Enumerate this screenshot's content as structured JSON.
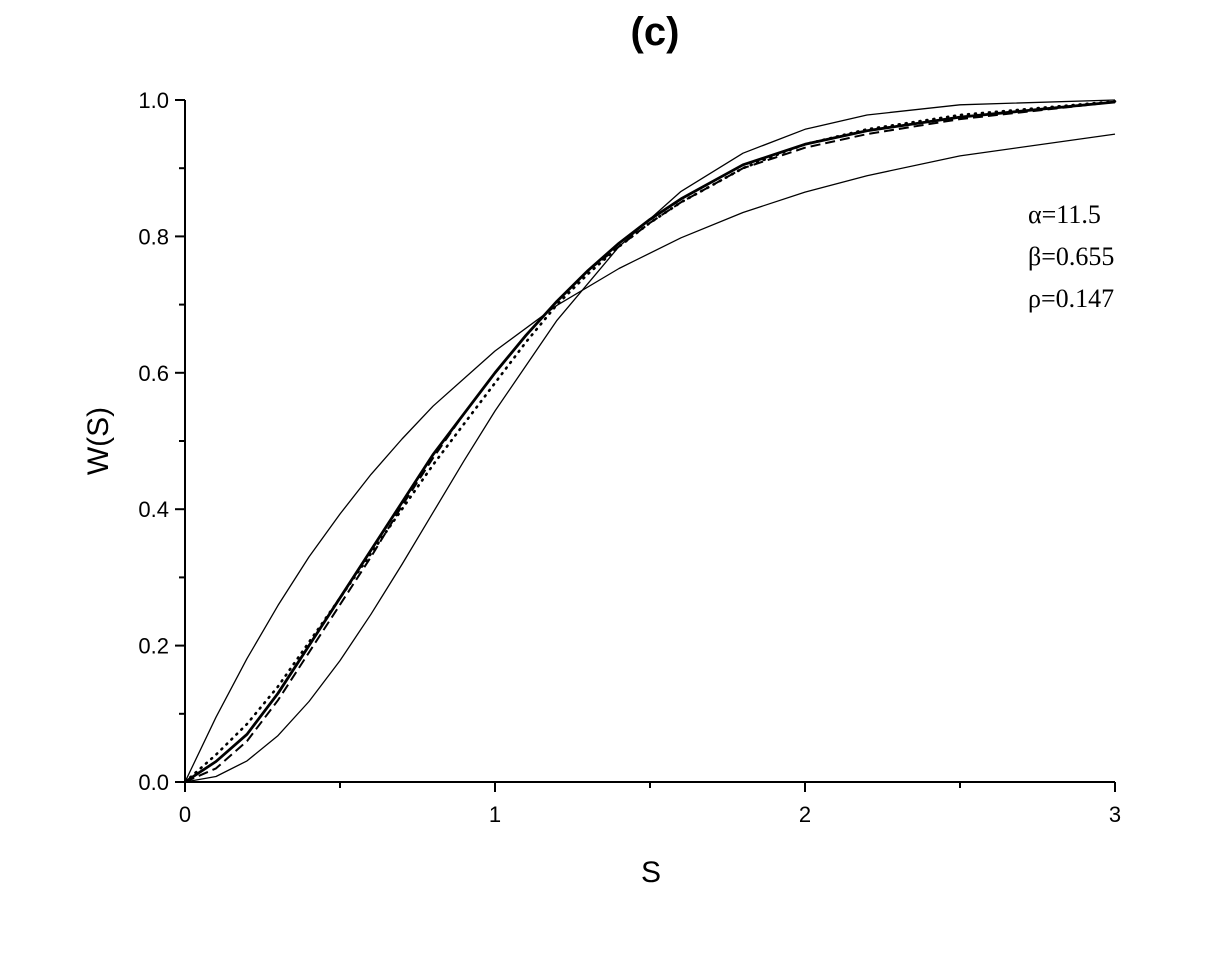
{
  "chart_data": {
    "type": "line",
    "title": "(c)",
    "xlabel": "S",
    "ylabel": "W(S)",
    "xlim": [
      0,
      3
    ],
    "ylim": [
      0,
      1.0
    ],
    "x_ticks": [
      "0",
      "1",
      "2",
      "3"
    ],
    "y_ticks": [
      "0.0",
      "0.2",
      "0.4",
      "0.6",
      "0.8",
      "1.0"
    ],
    "grid": false,
    "annotations": [
      "α=11.5",
      "β=0.655",
      "ρ=0.147"
    ],
    "series": [
      {
        "style": "solid-thin",
        "x": [
          0,
          0.1,
          0.2,
          0.3,
          0.4,
          0.5,
          0.6,
          0.7,
          0.8,
          1.0,
          1.2,
          1.4,
          1.6,
          1.8,
          2.0,
          2.2,
          2.5,
          3.0
        ],
        "y": [
          0,
          0.095,
          0.181,
          0.259,
          0.33,
          0.393,
          0.451,
          0.503,
          0.551,
          0.632,
          0.699,
          0.753,
          0.798,
          0.835,
          0.865,
          0.889,
          0.918,
          0.95
        ]
      },
      {
        "style": "solid-thin",
        "x": [
          0,
          0.1,
          0.2,
          0.3,
          0.4,
          0.5,
          0.6,
          0.7,
          0.8,
          0.9,
          1.0,
          1.2,
          1.4,
          1.6,
          1.8,
          2.0,
          2.2,
          2.5,
          3.0
        ],
        "y": [
          0,
          0.008,
          0.031,
          0.068,
          0.118,
          0.178,
          0.246,
          0.319,
          0.395,
          0.471,
          0.544,
          0.677,
          0.785,
          0.866,
          0.922,
          0.957,
          0.978,
          0.993,
          1.0
        ]
      },
      {
        "style": "solid-thick",
        "x": [
          0,
          0.1,
          0.2,
          0.3,
          0.4,
          0.5,
          0.6,
          0.7,
          0.8,
          0.9,
          1.0,
          1.1,
          1.2,
          1.3,
          1.4,
          1.5,
          1.6,
          1.7,
          1.8,
          1.9,
          2.0,
          2.2,
          2.5,
          3.0
        ],
        "y": [
          0,
          0.03,
          0.07,
          0.13,
          0.2,
          0.27,
          0.34,
          0.41,
          0.48,
          0.54,
          0.6,
          0.655,
          0.705,
          0.75,
          0.79,
          0.825,
          0.855,
          0.88,
          0.905,
          0.92,
          0.935,
          0.955,
          0.975,
          0.997
        ]
      },
      {
        "style": "dashed",
        "x": [
          0,
          0.1,
          0.2,
          0.3,
          0.4,
          0.5,
          0.6,
          0.7,
          0.8,
          0.9,
          1.0,
          1.1,
          1.2,
          1.3,
          1.4,
          1.5,
          1.6,
          1.7,
          1.8,
          1.9,
          2.0,
          2.2,
          2.5,
          3.0
        ],
        "y": [
          0,
          0.02,
          0.06,
          0.12,
          0.19,
          0.26,
          0.33,
          0.405,
          0.475,
          0.54,
          0.6,
          0.655,
          0.705,
          0.75,
          0.785,
          0.82,
          0.85,
          0.875,
          0.9,
          0.915,
          0.93,
          0.95,
          0.972,
          0.997
        ]
      },
      {
        "style": "dotted",
        "x": [
          0,
          0.1,
          0.2,
          0.3,
          0.4,
          0.5,
          0.6,
          0.7,
          0.8,
          0.9,
          1.0,
          1.1,
          1.2,
          1.3,
          1.4,
          1.5,
          1.6,
          1.7,
          1.8,
          1.9,
          2.0,
          2.2,
          2.5,
          3.0
        ],
        "y": [
          0,
          0.04,
          0.085,
          0.14,
          0.205,
          0.27,
          0.335,
          0.4,
          0.465,
          0.525,
          0.585,
          0.645,
          0.7,
          0.745,
          0.785,
          0.82,
          0.85,
          0.875,
          0.9,
          0.918,
          0.935,
          0.957,
          0.978,
          0.998
        ]
      }
    ]
  }
}
